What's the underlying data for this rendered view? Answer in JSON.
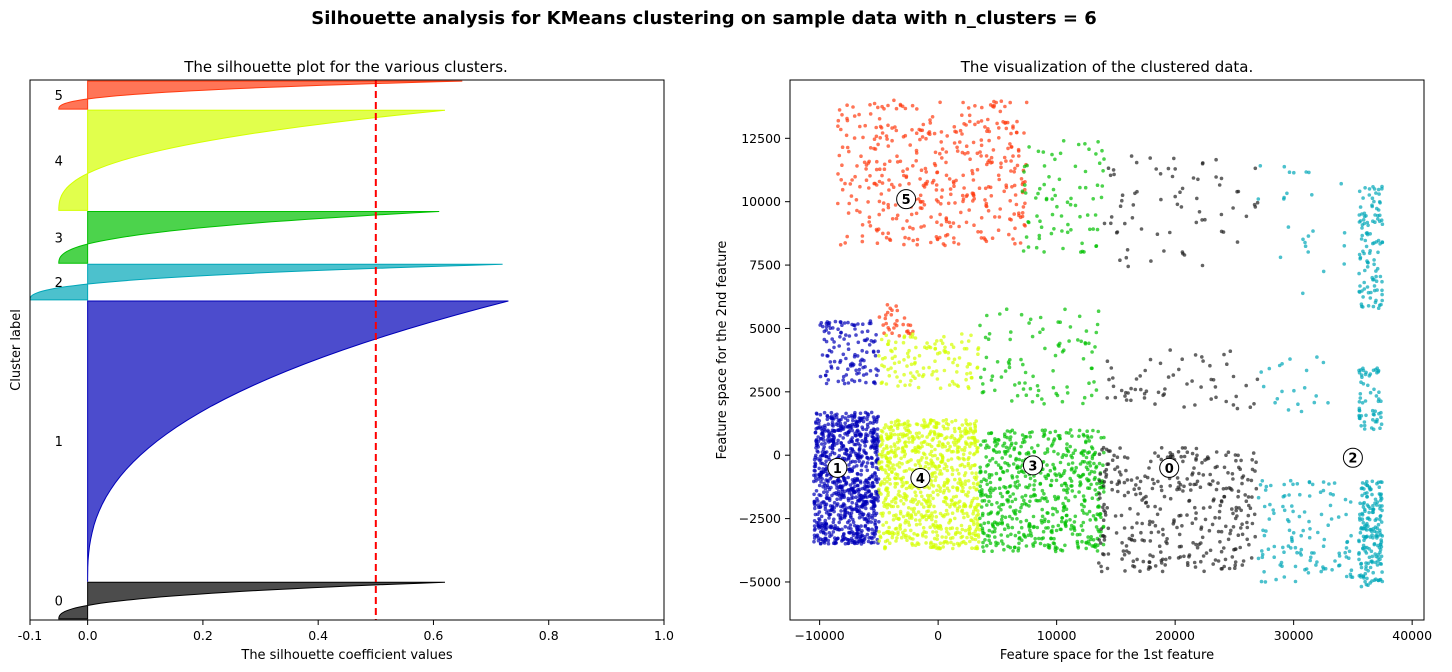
{
  "suptitle": "Silhouette analysis for KMeans clustering on sample data with n_clusters = 6",
  "chart_data": [
    {
      "type": "area",
      "title": "The silhouette plot for the various clusters.",
      "xlabel": "The silhouette coefficient values",
      "ylabel": "Cluster label",
      "xlim": [
        -0.1,
        1.0
      ],
      "xticks": [
        "-0.1",
        "0.0",
        "0.2",
        "0.4",
        "0.6",
        "0.8",
        "1.0"
      ],
      "xtick_values": [
        -0.1,
        0.0,
        0.2,
        0.4,
        0.6,
        0.8,
        1.0
      ],
      "average_silhouette_score": 0.5,
      "average_line_color": "#ff0000",
      "clusters": [
        {
          "label": "0",
          "size": 340,
          "min": -0.05,
          "max": 0.62,
          "color": "#000000"
        },
        {
          "label": "1",
          "size": 2600,
          "min": 0.0,
          "max": 0.73,
          "color": "#0000b8"
        },
        {
          "label": "2",
          "size": 330,
          "min": -0.1,
          "max": 0.72,
          "color": "#00a6b8"
        },
        {
          "label": "3",
          "size": 480,
          "min": -0.05,
          "max": 0.61,
          "color": "#00c000"
        },
        {
          "label": "4",
          "size": 930,
          "min": -0.05,
          "max": 0.62,
          "color": "#d4ff00"
        },
        {
          "label": "5",
          "size": 260,
          "min": -0.05,
          "max": 0.65,
          "color": "#ff3a10"
        }
      ]
    },
    {
      "type": "scatter",
      "title": "The visualization of the clustered data.",
      "xlabel": "Feature space for the 1st feature",
      "ylabel": "Feature space for the 2nd feature",
      "xlim": [
        -12500,
        41000
      ],
      "ylim": [
        -6500,
        14800
      ],
      "xticks": [
        "−10000",
        "0",
        "10000",
        "20000",
        "30000",
        "40000"
      ],
      "xtick_values": [
        -10000,
        0,
        10000,
        20000,
        30000,
        40000
      ],
      "yticks": [
        "−5000",
        "−2500",
        "0",
        "2500",
        "5000",
        "7500",
        "10000",
        "12500"
      ],
      "ytick_values": [
        -5000,
        -2500,
        0,
        2500,
        5000,
        7500,
        10000,
        12500
      ],
      "centers": [
        {
          "label": "0",
          "x": 19500,
          "y": -500
        },
        {
          "label": "1",
          "x": -8500,
          "y": -500
        },
        {
          "label": "2",
          "x": 35000,
          "y": -100
        },
        {
          "label": "3",
          "x": 8000,
          "y": -400
        },
        {
          "label": "4",
          "x": -1500,
          "y": -900
        },
        {
          "label": "5",
          "x": -2700,
          "y": 10100
        }
      ],
      "point_groups": [
        {
          "cluster": "1",
          "color": "#0000b8",
          "x": [
            -10500,
            -5000
          ],
          "y": [
            -3500,
            1700
          ],
          "n": 900
        },
        {
          "cluster": "4",
          "color": "#d4ff00",
          "x": [
            -5000,
            3500
          ],
          "y": [
            -3700,
            1400
          ],
          "n": 800
        },
        {
          "cluster": "3",
          "color": "#00c000",
          "x": [
            3500,
            14000
          ],
          "y": [
            -3800,
            1000
          ],
          "n": 600
        },
        {
          "cluster": "0",
          "color": "#222222",
          "x": [
            13500,
            27000
          ],
          "y": [
            -4600,
            300
          ],
          "n": 350
        },
        {
          "cluster": "2",
          "color": "#00a6b8",
          "x": [
            27000,
            35000
          ],
          "y": [
            -5000,
            -1000
          ],
          "n": 120
        },
        {
          "cluster": "2",
          "color": "#00a6b8",
          "x": [
            35500,
            37500
          ],
          "y": [
            -5200,
            -1000
          ],
          "n": 180
        },
        {
          "cluster": "2",
          "color": "#00a6b8",
          "x": [
            35500,
            37500
          ],
          "y": [
            1000,
            3500
          ],
          "n": 60
        },
        {
          "cluster": "1",
          "color": "#0000b8",
          "x": [
            -10000,
            -5000
          ],
          "y": [
            2800,
            5300
          ],
          "n": 120
        },
        {
          "cluster": "5",
          "color": "#ff3a10",
          "x": [
            -5000,
            -2000
          ],
          "y": [
            4700,
            6000
          ],
          "n": 30
        },
        {
          "cluster": "4",
          "color": "#d4ff00",
          "x": [
            -5000,
            3500
          ],
          "y": [
            2600,
            4800
          ],
          "n": 120
        },
        {
          "cluster": "3",
          "color": "#00c000",
          "x": [
            3500,
            14000
          ],
          "y": [
            2000,
            5800
          ],
          "n": 90
        },
        {
          "cluster": "0",
          "color": "#222222",
          "x": [
            14000,
            27000
          ],
          "y": [
            1800,
            4200
          ],
          "n": 60
        },
        {
          "cluster": "2",
          "color": "#00a6b8",
          "x": [
            27000,
            34000
          ],
          "y": [
            1700,
            4200
          ],
          "n": 20
        },
        {
          "cluster": "5",
          "color": "#ff3a10",
          "x": [
            -8500,
            7500
          ],
          "y": [
            8200,
            14000
          ],
          "n": 420
        },
        {
          "cluster": "3",
          "color": "#00c000",
          "x": [
            7000,
            14000
          ],
          "y": [
            8000,
            12500
          ],
          "n": 80
        },
        {
          "cluster": "0",
          "color": "#222222",
          "x": [
            14000,
            27000
          ],
          "y": [
            7200,
            11800
          ],
          "n": 70
        },
        {
          "cluster": "2",
          "color": "#00a6b8",
          "x": [
            27000,
            35000
          ],
          "y": [
            6300,
            11500
          ],
          "n": 25
        },
        {
          "cluster": "2",
          "color": "#00a6b8",
          "x": [
            35500,
            37500
          ],
          "y": [
            5800,
            10600
          ],
          "n": 110
        }
      ]
    }
  ]
}
